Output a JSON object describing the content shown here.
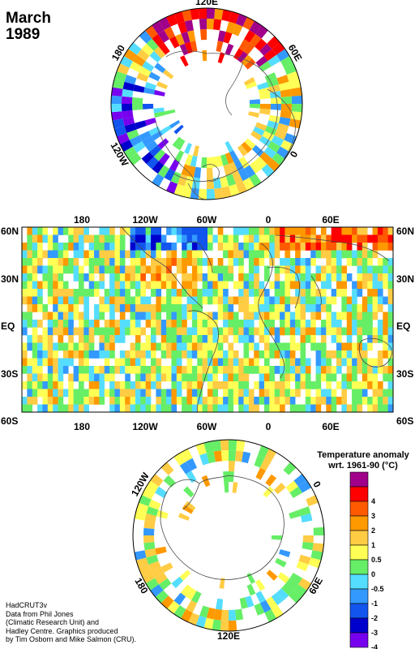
{
  "title": {
    "line1": "March",
    "line2": "1989"
  },
  "north_polar": {
    "labels": [
      {
        "text": "120E",
        "angle": 0
      },
      {
        "text": "60E",
        "angle": 60
      },
      {
        "text": "0",
        "angle": 120
      },
      {
        "text": "120W",
        "angle": 240
      },
      {
        "text": "180",
        "angle": 300
      }
    ]
  },
  "equirect": {
    "lon_labels": [
      "180",
      "120W",
      "60W",
      "0",
      "60E"
    ],
    "lat_labels_left": [
      "60N",
      "30N",
      "EQ",
      "30S",
      "60S"
    ],
    "lat_labels_right": [
      "60N",
      "30N",
      "EQ",
      "30S",
      "60S"
    ]
  },
  "south_polar": {
    "labels": [
      {
        "text": "120W",
        "angle": -60
      },
      {
        "text": "0",
        "angle": 60
      },
      {
        "text": "60E",
        "angle": 120
      },
      {
        "text": "120E",
        "angle": 180
      },
      {
        "text": "180",
        "angle": -120
      }
    ]
  },
  "legend": {
    "title_line1": "Temperature anomaly",
    "title_line2": "wrt. 1961-90  (°C)",
    "bands": [
      {
        "color": "#a0008a"
      },
      {
        "color": "#ff0000",
        "tick": "4"
      },
      {
        "color": "#ff5a00",
        "tick": "3"
      },
      {
        "color": "#ff9900",
        "tick": "2"
      },
      {
        "color": "#ffcc44",
        "tick": "1"
      },
      {
        "color": "#ffff55",
        "tick": "0.5"
      },
      {
        "color": "#66ee66",
        "tick": "0"
      },
      {
        "color": "#55ddff",
        "tick": "-0.5"
      },
      {
        "color": "#3399ff",
        "tick": "-1"
      },
      {
        "color": "#1155ee",
        "tick": "-2"
      },
      {
        "color": "#0000cc",
        "tick": "-3"
      },
      {
        "color": "#7700ee",
        "tick": "-4"
      }
    ]
  },
  "credits": [
    "HadCRUT3v",
    "Data from Phil Jones",
    "(Climatic Research Unit) and",
    "Hadley Centre.  Graphics produced",
    "by Tim Osborn and Mike Salmon (CRU)."
  ]
}
